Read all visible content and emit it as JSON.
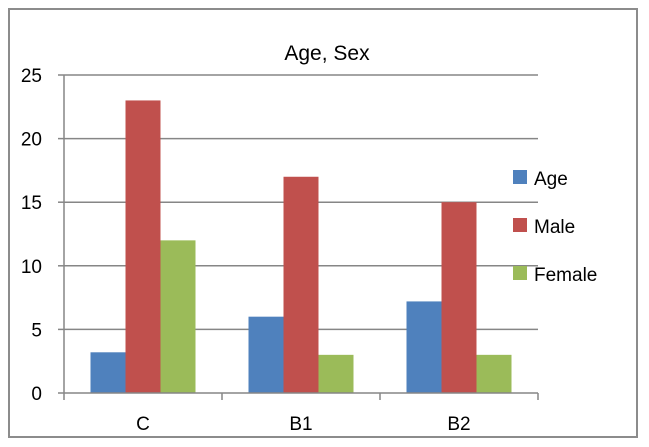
{
  "chart_data": {
    "type": "bar",
    "title": "Age, Sex",
    "categories": [
      "C",
      "B1",
      "B2"
    ],
    "series": [
      {
        "name": "Age",
        "values": [
          3.2,
          6.0,
          7.2
        ]
      },
      {
        "name": "Male",
        "values": [
          23,
          17,
          15
        ]
      },
      {
        "name": "Female",
        "values": [
          12,
          3,
          3
        ]
      }
    ],
    "xlabel": "",
    "ylabel": "",
    "ylim": [
      0,
      25
    ],
    "yticks": [
      0,
      5,
      10,
      15,
      20,
      25
    ],
    "grid": true,
    "legend": "right",
    "colors": [
      "#4f81bd",
      "#c0504d",
      "#9bbb59"
    ]
  }
}
